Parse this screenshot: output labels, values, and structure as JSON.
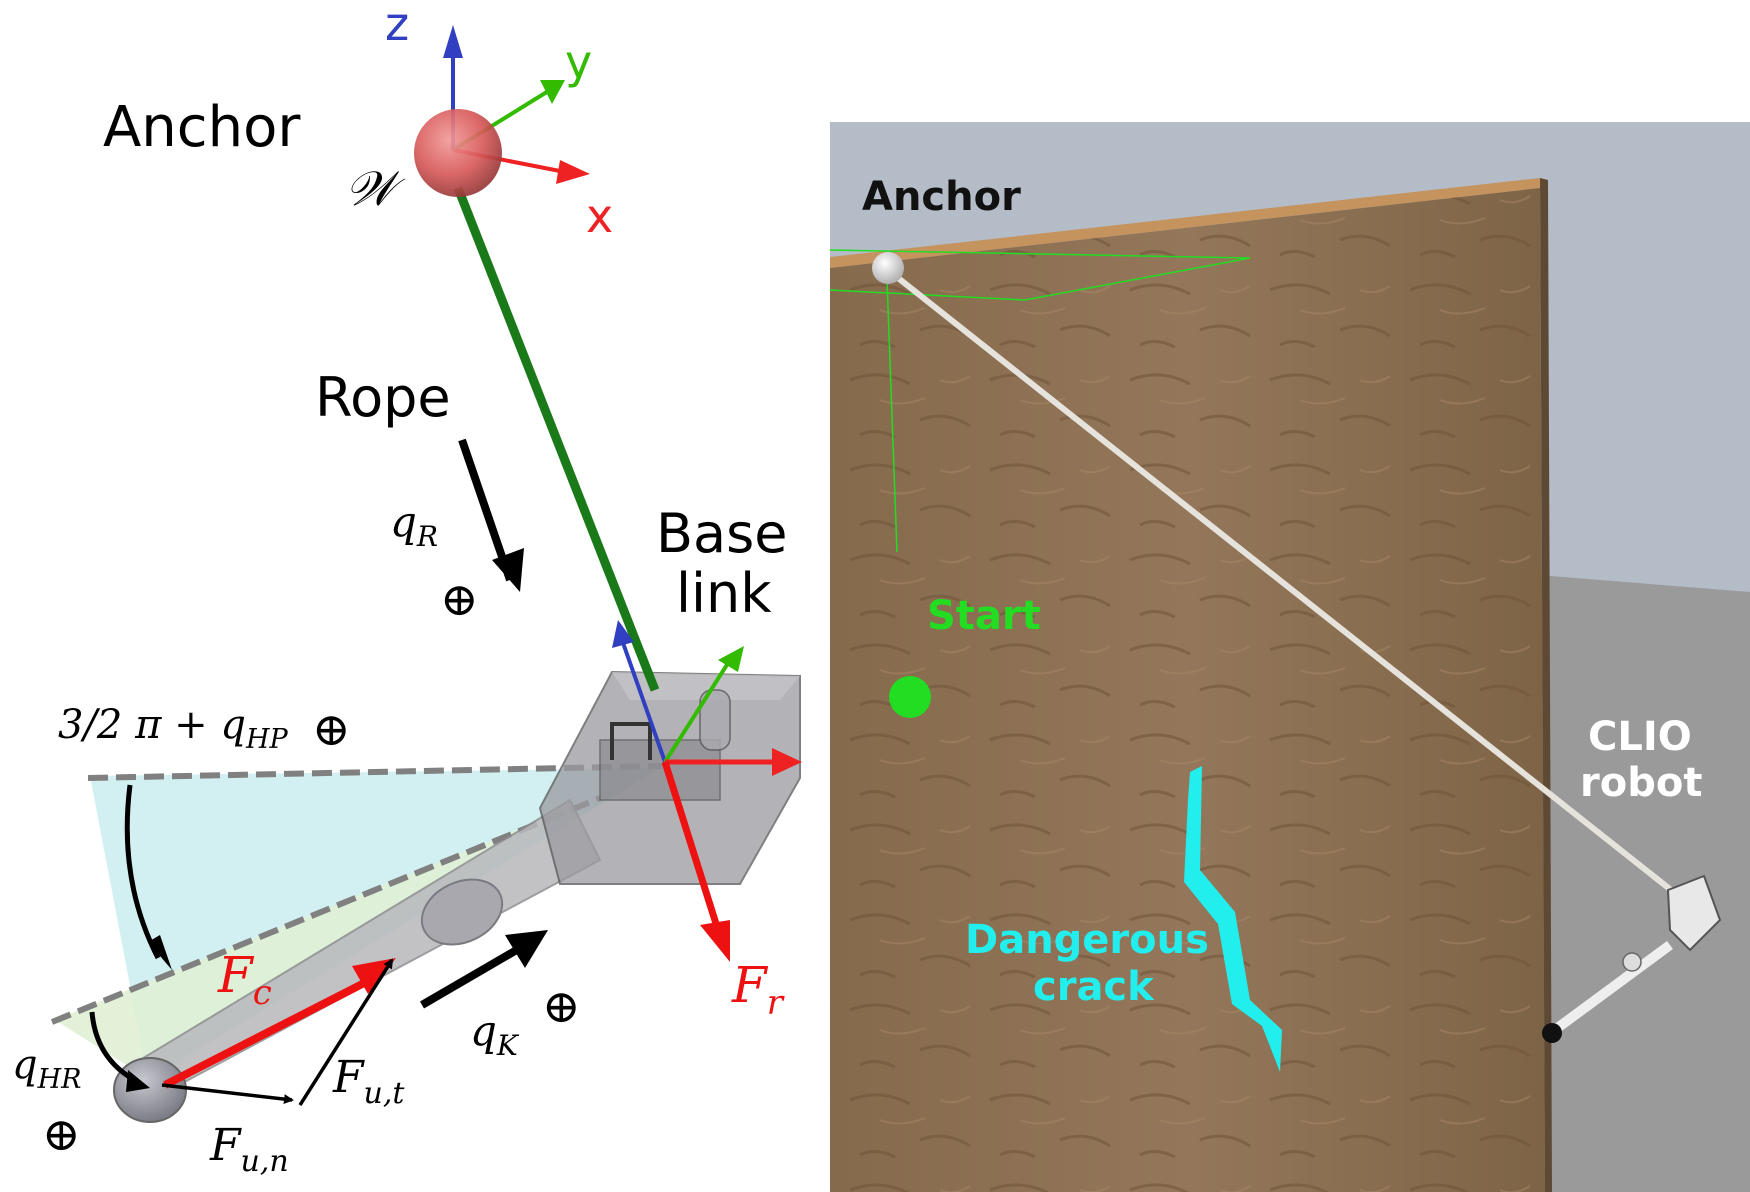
{
  "left_panel": {
    "frame_axes": {
      "z": "z",
      "y": "y",
      "x": "x"
    },
    "anchor_label": "Anchor",
    "world_frame_symbol": "𝒲",
    "rope_label": "Rope",
    "base_link_line1": "Base",
    "base_link_line2": "link",
    "joints": {
      "q_R": {
        "base": "q",
        "sub": "R"
      },
      "q_HP": {
        "base": "q",
        "sub": "HP",
        "prefix": "3/2 π + "
      },
      "q_HR": {
        "base": "q",
        "sub": "HR"
      },
      "q_K": {
        "base": "q",
        "sub": "K"
      }
    },
    "rotation_symbol": "⊕",
    "forces": {
      "F_c": {
        "base": "F",
        "sub": "c"
      },
      "F_r": {
        "base": "F",
        "sub": "r"
      },
      "F_ut": {
        "base": "F",
        "sub": "u,t"
      },
      "F_un": {
        "base": "F",
        "sub": "u,n"
      }
    },
    "colors": {
      "z_axis": "#3040c0",
      "y_axis": "#33bb00",
      "x_axis": "#ee2222",
      "rope": "#1a7a1a",
      "force_red": "#ee1111",
      "hip_pitch_fill": "#cdeef0",
      "hip_roll_fill": "#dff0d4"
    }
  },
  "right_panel": {
    "anchor_label": "Anchor",
    "start_label": "Start",
    "crack_label_line1": "Dangerous",
    "crack_label_line2": "crack",
    "robot_label_line1": "CLIO",
    "robot_label_line2": "robot",
    "colors": {
      "sky": "#b4bcc8",
      "wall": "#8e7152",
      "wall_top": "#c4935e",
      "floor": "#9a9a9a",
      "start": "#22dd22",
      "crack": "#22eeee",
      "rope": "#e6e2dc"
    }
  }
}
